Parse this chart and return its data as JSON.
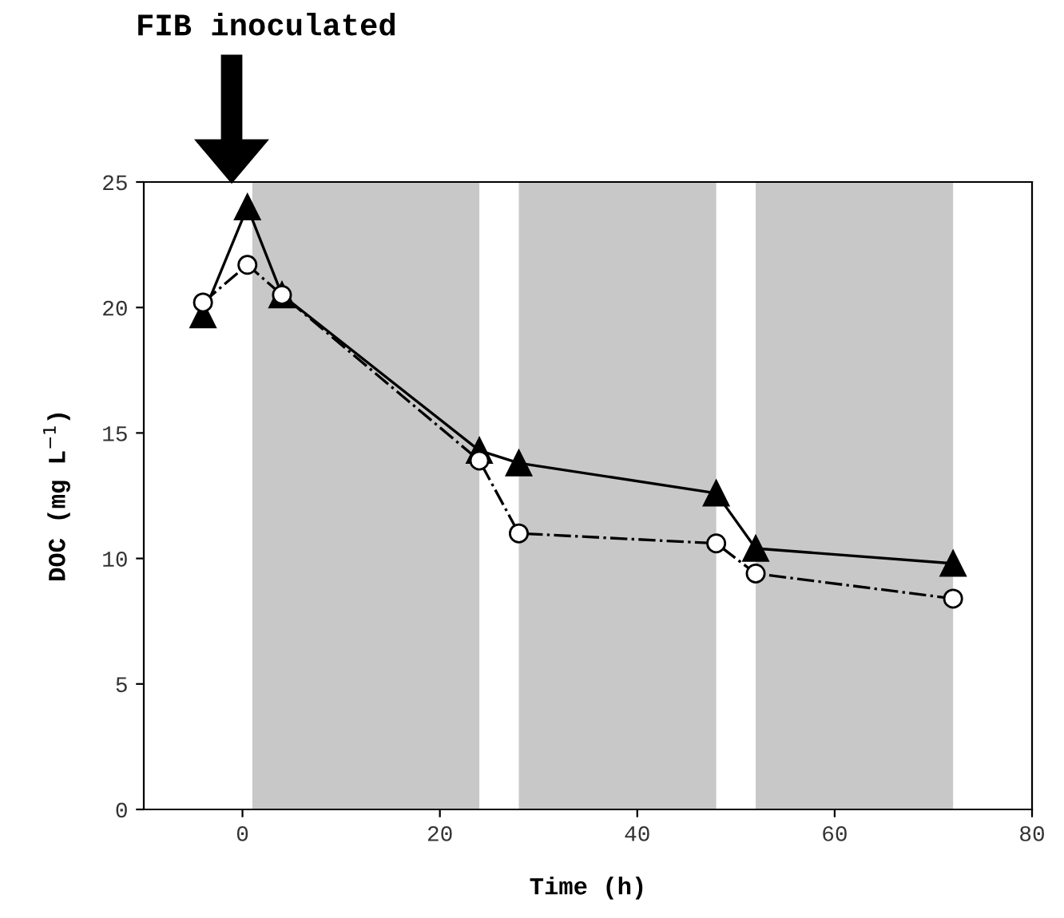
{
  "chart_data": {
    "type": "line",
    "xlabel": "Time (h)",
    "ylabel": "DOC (mg L$^{−1}$)",
    "x": [
      -4,
      0.5,
      4,
      24,
      28,
      48,
      52,
      72
    ],
    "series": [
      {
        "color": "#000000",
        "marker": "triangle",
        "line_style": "solid",
        "values": [
          19.7,
          24.0,
          20.5,
          14.3,
          13.8,
          12.6,
          10.4,
          9.8
        ]
      },
      {
        "color": "#000000",
        "marker": "circle",
        "line_style": "dashdot",
        "values": [
          20.2,
          21.7,
          20.5,
          13.9,
          11.0,
          10.6,
          9.4,
          8.4
        ]
      }
    ],
    "bands": [
      {
        "axis": "x",
        "from": 1,
        "to": 24,
        "color": "#c8c8c8"
      },
      {
        "axis": "x",
        "from": 28,
        "to": 48,
        "color": "#c8c8c8"
      },
      {
        "axis": "x",
        "from": 52,
        "to": 72,
        "color": "#c8c8c8"
      }
    ],
    "annotations": [
      "FIB inoculated"
    ],
    "xlim": [
      -10,
      80
    ],
    "xticks": [
      0,
      20,
      40,
      60,
      80
    ],
    "ylim": [
      0,
      25
    ],
    "yticks": [
      0,
      5,
      10,
      15,
      20,
      25
    ],
    "grid": false
  }
}
